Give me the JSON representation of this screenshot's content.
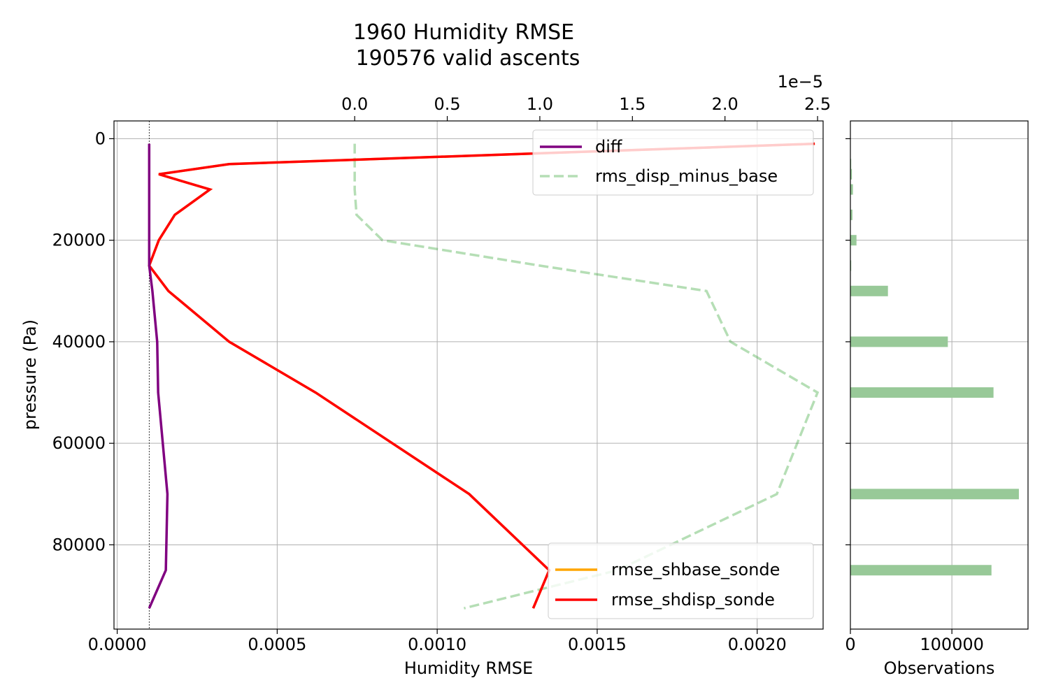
{
  "chart_data": {
    "type": "line",
    "title_lines": [
      "1960 Humidity RMSE",
      "190576 valid ascents"
    ],
    "main_panel": {
      "xlabel": "Humidity RMSE",
      "ylabel": "pressure (Pa)",
      "xlim": [
        -1e-05,
        0.002206
      ],
      "ylim": [
        96600,
        -3500
      ],
      "x_ticks": [
        0.0,
        0.0005,
        0.001,
        0.0015,
        0.002
      ],
      "x_tick_labels": [
        "0.0000",
        "0.0005",
        "0.0010",
        "0.0015",
        "0.0020"
      ],
      "y_ticks": [
        0,
        20000,
        40000,
        60000,
        80000
      ],
      "y_tick_labels": [
        "0",
        "20000",
        "40000",
        "60000",
        "80000"
      ],
      "grid": true,
      "zero_line_x": 0.0001,
      "pressure_levels": [
        1000,
        5000,
        7000,
        10000,
        15000,
        20000,
        25000,
        30000,
        40000,
        50000,
        70000,
        85000,
        92500
      ],
      "series": [
        {
          "name": "rmse_shbase_sonde",
          "color": "#ffa500",
          "style": "solid",
          "values": [
            0.00218,
            0.00035,
            0.00013,
            0.00029,
            0.00018,
            0.00013,
            0.0001,
            0.00016,
            0.00035,
            0.00062,
            0.0011,
            0.00135,
            0.0013
          ]
        },
        {
          "name": "rmse_shdisp_sonde",
          "color": "#ff0000",
          "style": "solid",
          "values": [
            0.00218,
            0.00035,
            0.00013,
            0.00029,
            0.00018,
            0.00013,
            0.0001,
            0.00016,
            0.00035,
            0.00062,
            0.0011,
            0.00135,
            0.0013
          ]
        },
        {
          "name": "diff",
          "color": "#800080",
          "style": "solid",
          "values": [
            0.0001,
            0.0001,
            0.0001,
            0.0001,
            0.0001,
            0.0001,
            0.0001,
            0.00011,
            0.000125,
            0.000128,
            0.000157,
            0.000152,
            0.0001
          ]
        }
      ]
    },
    "secondary_x_axis": {
      "exponent_label": "1e−5",
      "xlim": [
        -1.3e-05,
        2.53e-05
      ],
      "ticks": [
        0.0,
        5e-06,
        1e-05,
        1.5e-05,
        2e-05,
        2.5e-05
      ],
      "tick_labels": [
        "0.0",
        "0.5",
        "1.0",
        "1.5",
        "2.0",
        "2.5"
      ],
      "series": [
        {
          "name": "rms_disp_minus_base",
          "color": "#2ca02c",
          "style": "dashed",
          "values": [
            0.0,
            0.0,
            0.0,
            0.0,
            1e-07,
            1.5e-06,
            1e-05,
            1.9e-05,
            2.03e-05,
            2.5e-05,
            2.28e-05,
            1.42e-05,
            5.9e-06
          ]
        }
      ]
    },
    "legends": {
      "upper_right": [
        "diff",
        "rms_disp_minus_base"
      ],
      "lower_right": [
        "rmse_shbase_sonde",
        "rmse_shdisp_sonde"
      ]
    },
    "obs_panel": {
      "type": "bar",
      "xlabel": "Observations",
      "xlim": [
        0,
        175000
      ],
      "x_ticks": [
        0,
        100000
      ],
      "x_tick_labels": [
        "0",
        "100000"
      ],
      "color": "#98c998",
      "pressure_levels": [
        1000,
        5000,
        7000,
        10000,
        15000,
        20000,
        25000,
        30000,
        40000,
        50000,
        70000,
        85000,
        92500
      ],
      "values": [
        0,
        800,
        1500,
        2500,
        2000,
        6000,
        800,
        37000,
        96000,
        141000,
        166000,
        139000,
        0
      ]
    }
  }
}
